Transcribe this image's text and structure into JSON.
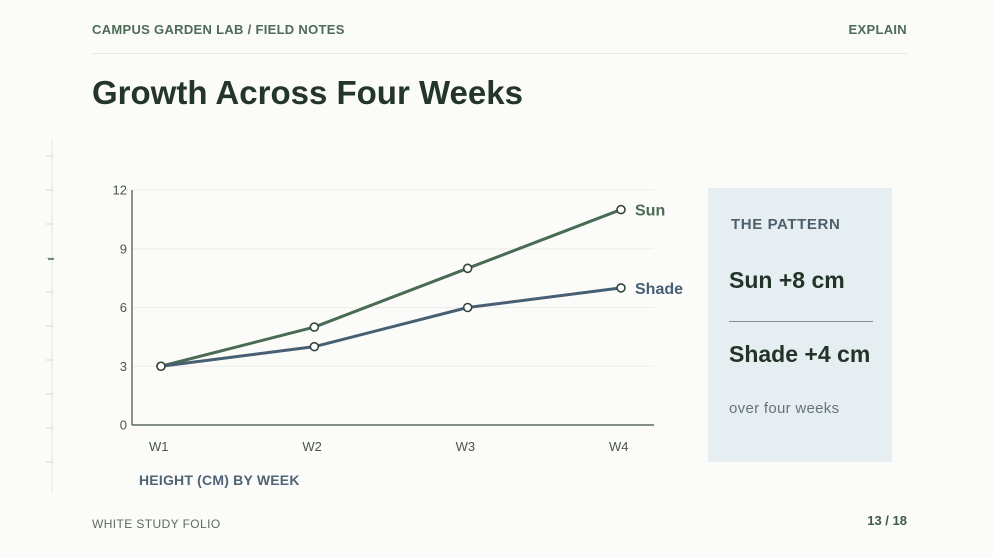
{
  "header": {
    "section_label": "CAMPUS GARDEN LAB / FIELD NOTES",
    "mode_label": "EXPLAIN"
  },
  "slide": {
    "title": "Growth Across Four Weeks"
  },
  "chart_data": {
    "type": "line",
    "categories": [
      "W1",
      "W2",
      "W3",
      "W4"
    ],
    "series": [
      {
        "name": "Sun",
        "values": [
          3,
          5,
          8,
          11
        ],
        "color": "#4a6b53"
      },
      {
        "name": "Shade",
        "values": [
          3,
          4,
          6,
          7
        ],
        "color": "#475f72"
      }
    ],
    "ylim": [
      0,
      12
    ],
    "yticks": [
      0,
      3,
      6,
      9,
      12
    ],
    "xlabel": "HEIGHT (CM) BY WEEK",
    "ylabel": "",
    "grid": true,
    "legend": "end-of-line labels"
  },
  "summary": {
    "heading": "THE PATTERN",
    "sun_change": "Sun +8 cm",
    "shade_change": "Shade +4 cm",
    "note": "over four weeks"
  },
  "footer": {
    "folio": "WHITE STUDY FOLIO",
    "page": "13 / 18"
  }
}
